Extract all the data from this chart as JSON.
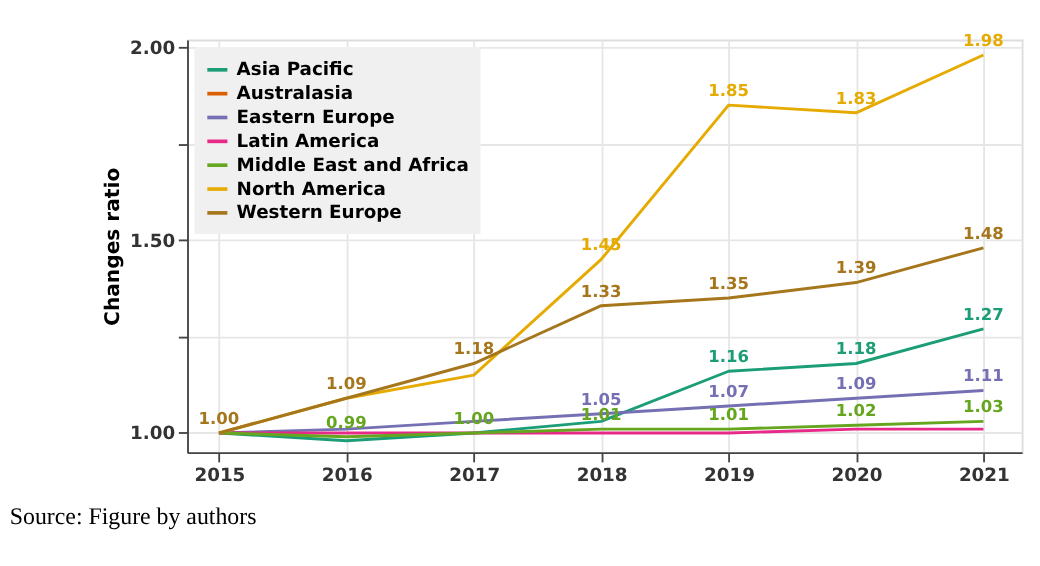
{
  "chart_data": {
    "type": "line",
    "ylabel": "Changes ratio",
    "annotations": [
      "Source: Figure by authors"
    ],
    "x": [
      2015,
      2016,
      2017,
      2018,
      2019,
      2020,
      2021
    ],
    "xlim": [
      2014.75,
      2021.3
    ],
    "xticks": [
      2015,
      2016,
      2017,
      2018,
      2019,
      2020,
      2021
    ],
    "ylim": [
      0.95,
      2.02
    ],
    "yticks": [
      "1.00",
      {
        "value": 1.25,
        "label": null
      },
      "1.50",
      {
        "value": 1.75,
        "label": null
      },
      "2.00"
    ],
    "grid": true,
    "legend": "top left",
    "marker": "none",
    "line_style": "solid",
    "series": [
      {
        "name": "Asia Pacific",
        "color": "#1b9e77",
        "values": [
          1.0,
          0.98,
          1.0,
          1.03,
          1.16,
          1.18,
          1.27
        ],
        "value_labels": [
          null,
          null,
          null,
          null,
          "1.16",
          "1.18",
          "1.27"
        ]
      },
      {
        "name": "Australasia",
        "color": "#d95f02",
        "values": [
          null,
          null,
          null,
          null,
          null,
          null,
          null
        ],
        "value_labels": [
          null,
          null,
          null,
          null,
          null,
          null,
          null
        ]
      },
      {
        "name": "Eastern Europe",
        "color": "#7570b3",
        "values": [
          1.0,
          1.01,
          1.03,
          1.05,
          1.07,
          1.09,
          1.11
        ],
        "value_labels": [
          null,
          null,
          null,
          "1.05",
          "1.07",
          "1.09",
          "1.11"
        ]
      },
      {
        "name": "Latin America",
        "color": "#e7298a",
        "values": [
          1.0,
          1.0,
          1.0,
          1.0,
          1.0,
          1.01,
          1.01
        ],
        "value_labels": [
          null,
          null,
          null,
          null,
          null,
          null,
          null
        ]
      },
      {
        "name": "Middle East and Africa",
        "color": "#66a61e",
        "values": [
          1.0,
          0.99,
          1.0,
          1.01,
          1.01,
          1.02,
          1.03
        ],
        "value_labels": [
          null,
          "0.99",
          "1.00",
          "1.01",
          "1.01",
          "1.02",
          "1.03"
        ]
      },
      {
        "name": "North America",
        "color": "#e6ab02",
        "values": [
          1.0,
          1.09,
          1.15,
          1.45,
          1.85,
          1.83,
          1.98
        ],
        "value_labels": [
          null,
          null,
          null,
          "1.45",
          "1.85",
          "1.83",
          "1.98"
        ]
      },
      {
        "name": "Western Europe",
        "color": "#a6761d",
        "values": [
          1.0,
          1.09,
          1.18,
          1.33,
          1.35,
          1.39,
          1.48
        ],
        "value_labels": [
          "1.00",
          "1.09",
          "1.18",
          "1.33",
          "1.35",
          "1.39",
          "1.48"
        ]
      }
    ]
  }
}
